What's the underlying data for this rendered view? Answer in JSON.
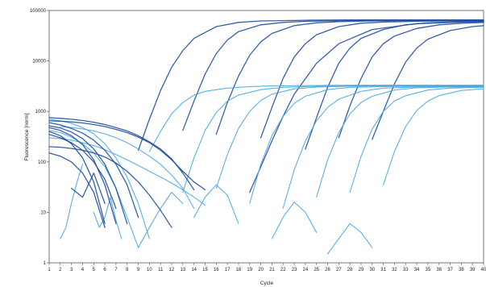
{
  "chart_data": {
    "type": "line",
    "title": "",
    "xlabel": "Cycle",
    "ylabel": "Fluorescence [norm]",
    "y_scale": "log",
    "ylim": [
      1,
      100000
    ],
    "xlim": [
      1,
      40
    ],
    "grid": false,
    "legend": "none",
    "y_ticks": [
      "1",
      "10",
      "100",
      "1000",
      "10000",
      "100000"
    ],
    "x_ticks": [
      "1",
      "2",
      "3",
      "4",
      "5",
      "6",
      "7",
      "8",
      "9",
      "10",
      "11",
      "12",
      "13",
      "14",
      "15",
      "16",
      "17",
      "18",
      "19",
      "20",
      "21",
      "22",
      "23",
      "24",
      "25",
      "26",
      "27",
      "28",
      "29",
      "30",
      "31",
      "32",
      "33",
      "34",
      "35",
      "36",
      "37",
      "38",
      "39",
      "40"
    ],
    "colors": {
      "dark": "#1f4fa0",
      "light": "#4aa8e0"
    },
    "series": [
      {
        "color": "dark",
        "x": [
          9,
          10,
          11,
          12,
          13,
          14,
          16,
          18,
          20,
          24,
          28,
          32,
          36,
          40
        ],
        "y": [
          170,
          700,
          2600,
          7500,
          16000,
          28000,
          48000,
          58000,
          62000,
          64000,
          65000,
          65000,
          65000,
          65000
        ]
      },
      {
        "color": "dark",
        "x": [
          13,
          14,
          15,
          16,
          17,
          18,
          20,
          22,
          24,
          28,
          32,
          36,
          40
        ],
        "y": [
          420,
          1600,
          5500,
          14000,
          26000,
          38000,
          52000,
          58000,
          61000,
          63000,
          64000,
          64000,
          64000
        ]
      },
      {
        "color": "dark",
        "x": [
          16,
          17,
          18,
          19,
          20,
          21,
          23,
          25,
          27,
          30,
          34,
          38,
          40
        ],
        "y": [
          350,
          1500,
          5000,
          13000,
          24000,
          35000,
          50000,
          57000,
          60000,
          62000,
          63000,
          63000,
          63000
        ]
      },
      {
        "color": "dark",
        "x": [
          20,
          21,
          22,
          23,
          24,
          25,
          27,
          29,
          31,
          34,
          37,
          40
        ],
        "y": [
          300,
          1200,
          4500,
          12000,
          22000,
          33000,
          48000,
          56000,
          59000,
          61000,
          62000,
          62000
        ]
      },
      {
        "color": "dark",
        "x": [
          19,
          20,
          21,
          22,
          23,
          25,
          27,
          30,
          34,
          38,
          40
        ],
        "y": [
          25,
          80,
          260,
          800,
          2200,
          9000,
          22000,
          42000,
          55000,
          59000,
          60000
        ]
      },
      {
        "color": "dark",
        "x": [
          24,
          25,
          26,
          27,
          28,
          29,
          31,
          33,
          35,
          38,
          40
        ],
        "y": [
          180,
          750,
          3000,
          9000,
          18000,
          28000,
          42000,
          52000,
          57000,
          60000,
          61000
        ]
      },
      {
        "color": "dark",
        "x": [
          27,
          28,
          29,
          30,
          31,
          32,
          34,
          36,
          38,
          40
        ],
        "y": [
          300,
          1300,
          4500,
          12000,
          22000,
          31000,
          44000,
          52000,
          56000,
          58000
        ]
      },
      {
        "color": "dark",
        "x": [
          30,
          31,
          32,
          33,
          34,
          35,
          37,
          39,
          40
        ],
        "y": [
          280,
          1000,
          3500,
          9500,
          18000,
          27000,
          40000,
          48000,
          50000
        ]
      },
      {
        "color": "light",
        "x": [
          10,
          11,
          12,
          13,
          14,
          15,
          17,
          19,
          21,
          24,
          28,
          32,
          36,
          40
        ],
        "y": [
          160,
          400,
          900,
          1500,
          2100,
          2500,
          2900,
          3100,
          3200,
          3250,
          3300,
          3300,
          3300,
          3300
        ]
      },
      {
        "color": "light",
        "x": [
          13,
          14,
          15,
          16,
          17,
          18,
          20,
          22,
          25,
          28,
          32,
          36,
          40
        ],
        "y": [
          25,
          120,
          420,
          950,
          1600,
          2100,
          2700,
          3000,
          3150,
          3200,
          3250,
          3250,
          3250
        ]
      },
      {
        "color": "light",
        "x": [
          16,
          17,
          18,
          19,
          20,
          21,
          23,
          25,
          28,
          31,
          35,
          40
        ],
        "y": [
          30,
          140,
          460,
          1000,
          1650,
          2200,
          2800,
          3050,
          3150,
          3200,
          3200,
          3200
        ]
      },
      {
        "color": "light",
        "x": [
          19,
          20,
          21,
          22,
          23,
          24,
          26,
          28,
          31,
          34,
          37,
          40
        ],
        "y": [
          15,
          90,
          330,
          800,
          1450,
          2000,
          2700,
          3000,
          3100,
          3150,
          3150,
          3150
        ]
      },
      {
        "color": "light",
        "x": [
          22,
          23,
          24,
          25,
          26,
          27,
          29,
          31,
          34,
          37,
          40
        ],
        "y": [
          12,
          70,
          260,
          650,
          1200,
          1750,
          2500,
          2900,
          3050,
          3100,
          3100
        ]
      },
      {
        "color": "light",
        "x": [
          25,
          26,
          27,
          28,
          29,
          30,
          32,
          34,
          37,
          40
        ],
        "y": [
          20,
          110,
          380,
          900,
          1500,
          2000,
          2650,
          2950,
          3050,
          3050
        ]
      },
      {
        "color": "light",
        "x": [
          28,
          29,
          30,
          31,
          32,
          33,
          35,
          37,
          39,
          40
        ],
        "y": [
          25,
          130,
          450,
          1000,
          1600,
          2050,
          2650,
          2900,
          2980,
          3000
        ]
      },
      {
        "color": "light",
        "x": [
          31,
          32,
          33,
          34,
          35,
          36,
          38,
          40
        ],
        "y": [
          35,
          160,
          500,
          1050,
          1600,
          2050,
          2600,
          2800
        ]
      },
      {
        "color": "light",
        "x": [
          1,
          2,
          3,
          4,
          5,
          6,
          7,
          8,
          9,
          10
        ],
        "y": [
          700,
          650,
          580,
          480,
          360,
          230,
          120,
          50,
          15,
          3
        ]
      },
      {
        "color": "light",
        "x": [
          1,
          2,
          3,
          4,
          5,
          6,
          7,
          8,
          9
        ],
        "y": [
          420,
          380,
          310,
          230,
          150,
          80,
          30,
          8,
          2
        ]
      },
      {
        "color": "light",
        "x": [
          1,
          2,
          3,
          4,
          5,
          6,
          7,
          8,
          9,
          10,
          11,
          12,
          13,
          14,
          15
        ],
        "y": [
          300,
          290,
          270,
          240,
          210,
          175,
          140,
          110,
          85,
          65,
          50,
          38,
          28,
          20,
          14
        ]
      },
      {
        "color": "light",
        "x": [
          2,
          3,
          4,
          5,
          6,
          7,
          8,
          9,
          10,
          11,
          12,
          13,
          14
        ],
        "y": [
          500,
          480,
          450,
          410,
          360,
          300,
          240,
          180,
          130,
          90,
          55,
          30,
          12
        ]
      },
      {
        "color": "light",
        "x": [
          2,
          2.5,
          3,
          3.5,
          4
        ],
        "y": [
          3,
          5,
          15,
          40,
          90
        ]
      },
      {
        "color": "light",
        "x": [
          5,
          5.5,
          6,
          6.5,
          7,
          7.5
        ],
        "y": [
          10,
          5,
          8,
          20,
          7,
          3
        ]
      },
      {
        "color": "light",
        "x": [
          9,
          10,
          11,
          12,
          13
        ],
        "y": [
          2,
          5,
          12,
          25,
          15
        ]
      },
      {
        "color": "light",
        "x": [
          14,
          15,
          16,
          17,
          18
        ],
        "y": [
          8,
          20,
          35,
          22,
          6
        ]
      },
      {
        "color": "light",
        "x": [
          21,
          22,
          23,
          24,
          25
        ],
        "y": [
          3,
          8,
          16,
          10,
          4
        ]
      },
      {
        "color": "light",
        "x": [
          26,
          27,
          28,
          29,
          30
        ],
        "y": [
          1.5,
          3,
          6,
          4,
          2
        ]
      },
      {
        "color": "dark",
        "x": [
          1,
          2,
          3,
          4,
          5,
          6,
          7,
          8,
          9
        ],
        "y": [
          600,
          540,
          460,
          370,
          270,
          170,
          90,
          35,
          8
        ]
      },
      {
        "color": "dark",
        "x": [
          1,
          2,
          3,
          4,
          5,
          6,
          7,
          8
        ],
        "y": [
          520,
          470,
          390,
          290,
          180,
          90,
          30,
          6
        ]
      },
      {
        "color": "dark",
        "x": [
          1,
          2,
          3,
          4,
          5,
          6,
          7
        ],
        "y": [
          480,
          420,
          330,
          220,
          110,
          35,
          6
        ]
      },
      {
        "color": "dark",
        "x": [
          1,
          2,
          3,
          4,
          5,
          6
        ],
        "y": [
          400,
          330,
          230,
          120,
          40,
          6
        ]
      },
      {
        "color": "dark",
        "x": [
          1,
          2,
          3,
          4,
          5,
          6,
          7,
          8,
          9,
          10,
          11,
          12,
          13,
          14
        ],
        "y": [
          750,
          730,
          700,
          660,
          610,
          550,
          480,
          410,
          330,
          250,
          180,
          115,
          60,
          28
        ]
      },
      {
        "color": "dark",
        "x": [
          1,
          2,
          3,
          4,
          5,
          6,
          7,
          8,
          9,
          10,
          11,
          12,
          13,
          14,
          15
        ],
        "y": [
          650,
          640,
          620,
          590,
          550,
          500,
          440,
          380,
          310,
          240,
          170,
          110,
          65,
          40,
          28
        ]
      },
      {
        "color": "dark",
        "x": [
          1,
          2,
          3,
          4,
          5,
          6,
          7
        ],
        "y": [
          350,
          300,
          240,
          170,
          100,
          45,
          12
        ]
      },
      {
        "color": "dark",
        "x": [
          1,
          2,
          3,
          4,
          5,
          6,
          7,
          8,
          9,
          10,
          11,
          12
        ],
        "y": [
          200,
          195,
          185,
          170,
          150,
          125,
          95,
          65,
          40,
          22,
          11,
          5
        ]
      },
      {
        "color": "dark",
        "x": [
          1,
          2,
          3,
          4,
          5,
          6
        ],
        "y": [
          150,
          130,
          100,
          60,
          25,
          5
        ]
      },
      {
        "color": "dark",
        "x": [
          3,
          4,
          5,
          6
        ],
        "y": [
          30,
          20,
          60,
          15
        ]
      }
    ]
  }
}
